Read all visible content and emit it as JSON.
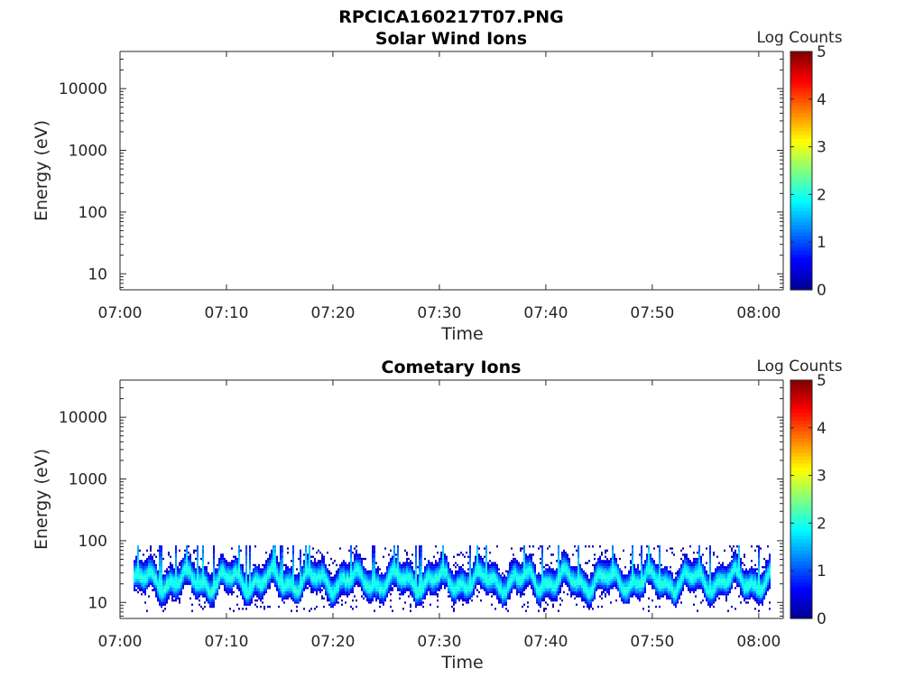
{
  "figure_title": "RPCICA160217T07.PNG",
  "colors": {
    "axis": "#262626",
    "colormap": [
      "#00008f",
      "#0000ff",
      "#0080ff",
      "#00ffff",
      "#80ff80",
      "#ffff00",
      "#ff8000",
      "#ff0000",
      "#800000"
    ]
  },
  "chart_data": [
    {
      "type": "heatmap",
      "title": "Solar Wind Ions",
      "xlabel": "Time",
      "ylabel": "Energy (eV)",
      "x_ticks": [
        "07:00",
        "07:10",
        "07:20",
        "07:30",
        "07:40",
        "07:50",
        "08:00"
      ],
      "x_range_minutes": [
        0,
        62.3
      ],
      "y_scale": "log",
      "y_range": [
        5.5,
        40000
      ],
      "y_ticks": [
        10,
        100,
        1000,
        10000
      ],
      "y_tick_labels": [
        "10",
        "100",
        "1000",
        "10000"
      ],
      "colorbar": {
        "label": "Log Counts",
        "range": [
          0,
          5
        ],
        "ticks": [
          "0",
          "1",
          "2",
          "3",
          "4",
          "5"
        ]
      },
      "data_present": false
    },
    {
      "type": "heatmap",
      "title": "Cometary Ions",
      "xlabel": "Time",
      "ylabel": "Energy (eV)",
      "x_ticks": [
        "07:00",
        "07:10",
        "07:20",
        "07:30",
        "07:40",
        "07:50",
        "08:00"
      ],
      "x_range_minutes": [
        0,
        62.3
      ],
      "y_scale": "log",
      "y_range": [
        5.5,
        40000
      ],
      "y_ticks": [
        10,
        100,
        1000,
        10000
      ],
      "y_tick_labels": [
        "10",
        "100",
        "1000",
        "10000"
      ],
      "colorbar": {
        "label": "Log Counts",
        "range": [
          0,
          5
        ],
        "ticks": [
          "0",
          "1",
          "2",
          "3",
          "4",
          "5"
        ]
      },
      "data_present": true,
      "data_time_range_minutes": [
        1.3,
        61
      ],
      "band_energy_range_eV": [
        10,
        80
      ],
      "band_peak_energy_eV": 22,
      "band_peak_log_counts": 2
    }
  ]
}
